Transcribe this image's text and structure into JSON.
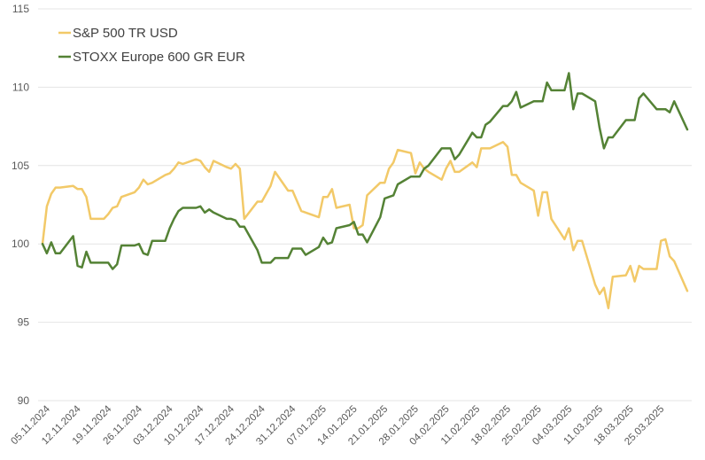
{
  "chart_data": {
    "type": "line",
    "title": "",
    "xlabel": "",
    "ylabel": "",
    "ylim": [
      90,
      115
    ],
    "y_ticks": [
      90,
      95,
      100,
      105,
      110,
      115
    ],
    "grid": "horizontal",
    "legend_position": "top-left",
    "x_tick_labels": [
      "05.11.2024",
      "12.11.2024",
      "19.11.2024",
      "26.11.2024",
      "03.12.2024",
      "10.12.2024",
      "17.12.2024",
      "24.12.2024",
      "31.12.2024",
      "07.01.2025",
      "14.01.2025",
      "21.01.2025",
      "28.01.2025",
      "04.02.2025",
      "11.02.2025",
      "18.02.2025",
      "25.02.2025",
      "04.03.2025",
      "11.03.2025",
      "18.03.2025",
      "25.03.2025"
    ],
    "series": [
      {
        "name": "S&P 500 TR USD",
        "color": "#f2c968",
        "points": [
          [
            "2024-11-04",
            100.0
          ],
          [
            "2024-11-05",
            102.4
          ],
          [
            "2024-11-06",
            103.2
          ],
          [
            "2024-11-07",
            103.6
          ],
          [
            "2024-11-08",
            103.6
          ],
          [
            "2024-11-11",
            103.7
          ],
          [
            "2024-11-12",
            103.5
          ],
          [
            "2024-11-13",
            103.5
          ],
          [
            "2024-11-14",
            103.0
          ],
          [
            "2024-11-15",
            101.6
          ],
          [
            "2024-11-18",
            101.6
          ],
          [
            "2024-11-19",
            101.9
          ],
          [
            "2024-11-20",
            102.3
          ],
          [
            "2024-11-21",
            102.4
          ],
          [
            "2024-11-22",
            103.0
          ],
          [
            "2024-11-25",
            103.3
          ],
          [
            "2024-11-26",
            103.6
          ],
          [
            "2024-11-27",
            104.1
          ],
          [
            "2024-11-28",
            103.8
          ],
          [
            "2024-11-29",
            103.9
          ],
          [
            "2024-12-02",
            104.4
          ],
          [
            "2024-12-03",
            104.5
          ],
          [
            "2024-12-04",
            104.8
          ],
          [
            "2024-12-05",
            105.2
          ],
          [
            "2024-12-06",
            105.1
          ],
          [
            "2024-12-09",
            105.4
          ],
          [
            "2024-12-10",
            105.3
          ],
          [
            "2024-12-11",
            104.9
          ],
          [
            "2024-12-12",
            104.6
          ],
          [
            "2024-12-13",
            105.3
          ],
          [
            "2024-12-16",
            104.9
          ],
          [
            "2024-12-17",
            104.8
          ],
          [
            "2024-12-18",
            105.1
          ],
          [
            "2024-12-19",
            104.8
          ],
          [
            "2024-12-20",
            101.6
          ],
          [
            "2024-12-23",
            102.7
          ],
          [
            "2024-12-24",
            102.7
          ],
          [
            "2024-12-26",
            103.7
          ],
          [
            "2024-12-27",
            104.6
          ],
          [
            "2024-12-30",
            103.4
          ],
          [
            "2024-12-31",
            103.4
          ],
          [
            "2025-01-02",
            102.1
          ],
          [
            "2025-01-03",
            102.0
          ],
          [
            "2025-01-06",
            101.7
          ],
          [
            "2025-01-07",
            103.0
          ],
          [
            "2025-01-08",
            103.0
          ],
          [
            "2025-01-09",
            103.5
          ],
          [
            "2025-01-10",
            102.3
          ],
          [
            "2025-01-13",
            102.5
          ],
          [
            "2025-01-14",
            101.0
          ],
          [
            "2025-01-15",
            101.0
          ],
          [
            "2025-01-16",
            101.2
          ],
          [
            "2025-01-17",
            103.1
          ],
          [
            "2025-01-20",
            103.9
          ],
          [
            "2025-01-21",
            103.9
          ],
          [
            "2025-01-22",
            104.8
          ],
          [
            "2025-01-23",
            105.2
          ],
          [
            "2025-01-24",
            106.0
          ],
          [
            "2025-01-27",
            105.8
          ],
          [
            "2025-01-28",
            104.5
          ],
          [
            "2025-01-29",
            105.2
          ],
          [
            "2025-01-30",
            104.8
          ],
          [
            "2025-01-31",
            104.6
          ],
          [
            "2025-02-03",
            104.1
          ],
          [
            "2025-02-04",
            104.8
          ],
          [
            "2025-02-05",
            105.3
          ],
          [
            "2025-02-06",
            104.6
          ],
          [
            "2025-02-07",
            104.6
          ],
          [
            "2025-02-10",
            105.2
          ],
          [
            "2025-02-11",
            104.9
          ],
          [
            "2025-02-12",
            106.1
          ],
          [
            "2025-02-13",
            106.1
          ],
          [
            "2025-02-14",
            106.1
          ],
          [
            "2025-02-17",
            106.5
          ],
          [
            "2025-02-18",
            106.2
          ],
          [
            "2025-02-19",
            104.4
          ],
          [
            "2025-02-20",
            104.4
          ],
          [
            "2025-02-21",
            103.9
          ],
          [
            "2025-02-24",
            103.4
          ],
          [
            "2025-02-25",
            101.8
          ],
          [
            "2025-02-26",
            103.3
          ],
          [
            "2025-02-27",
            103.3
          ],
          [
            "2025-02-28",
            101.6
          ],
          [
            "2025-03-03",
            100.3
          ],
          [
            "2025-03-04",
            101.0
          ],
          [
            "2025-03-05",
            99.6
          ],
          [
            "2025-03-06",
            100.2
          ],
          [
            "2025-03-07",
            100.2
          ],
          [
            "2025-03-10",
            97.4
          ],
          [
            "2025-03-11",
            96.8
          ],
          [
            "2025-03-12",
            97.2
          ],
          [
            "2025-03-13",
            95.9
          ],
          [
            "2025-03-14",
            97.9
          ],
          [
            "2025-03-17",
            98.0
          ],
          [
            "2025-03-18",
            98.6
          ],
          [
            "2025-03-19",
            97.6
          ],
          [
            "2025-03-20",
            98.6
          ],
          [
            "2025-03-21",
            98.4
          ],
          [
            "2025-03-24",
            98.4
          ],
          [
            "2025-03-25",
            100.2
          ],
          [
            "2025-03-26",
            100.3
          ],
          [
            "2025-03-27",
            99.2
          ],
          [
            "2025-03-28",
            98.9
          ],
          [
            "2025-03-31",
            97.0
          ]
        ]
      },
      {
        "name": "STOXX Europe 600 GR EUR",
        "color": "#548235",
        "points": [
          [
            "2024-11-04",
            100.0
          ],
          [
            "2024-11-05",
            99.4
          ],
          [
            "2024-11-06",
            100.1
          ],
          [
            "2024-11-07",
            99.4
          ],
          [
            "2024-11-08",
            99.4
          ],
          [
            "2024-11-11",
            100.5
          ],
          [
            "2024-11-12",
            98.6
          ],
          [
            "2024-11-13",
            98.5
          ],
          [
            "2024-11-14",
            99.5
          ],
          [
            "2024-11-15",
            98.8
          ],
          [
            "2024-11-18",
            98.8
          ],
          [
            "2024-11-19",
            98.8
          ],
          [
            "2024-11-20",
            98.4
          ],
          [
            "2024-11-21",
            98.7
          ],
          [
            "2024-11-22",
            99.9
          ],
          [
            "2024-11-25",
            99.9
          ],
          [
            "2024-11-26",
            100.0
          ],
          [
            "2024-11-27",
            99.4
          ],
          [
            "2024-11-28",
            99.3
          ],
          [
            "2024-11-29",
            100.2
          ],
          [
            "2024-12-02",
            100.2
          ],
          [
            "2024-12-03",
            101.0
          ],
          [
            "2024-12-04",
            101.6
          ],
          [
            "2024-12-05",
            102.1
          ],
          [
            "2024-12-06",
            102.3
          ],
          [
            "2024-12-09",
            102.3
          ],
          [
            "2024-12-10",
            102.4
          ],
          [
            "2024-12-11",
            102.0
          ],
          [
            "2024-12-12",
            102.2
          ],
          [
            "2024-12-13",
            102.0
          ],
          [
            "2024-12-16",
            101.6
          ],
          [
            "2024-12-17",
            101.6
          ],
          [
            "2024-12-18",
            101.5
          ],
          [
            "2024-12-19",
            101.1
          ],
          [
            "2024-12-20",
            101.1
          ],
          [
            "2024-12-23",
            99.6
          ],
          [
            "2024-12-24",
            98.8
          ],
          [
            "2024-12-26",
            98.8
          ],
          [
            "2024-12-27",
            99.1
          ],
          [
            "2024-12-30",
            99.1
          ],
          [
            "2024-12-31",
            99.7
          ],
          [
            "2025-01-02",
            99.7
          ],
          [
            "2025-01-03",
            99.3
          ],
          [
            "2025-01-06",
            99.8
          ],
          [
            "2025-01-07",
            100.4
          ],
          [
            "2025-01-08",
            100.0
          ],
          [
            "2025-01-09",
            100.1
          ],
          [
            "2025-01-10",
            101.0
          ],
          [
            "2025-01-13",
            101.2
          ],
          [
            "2025-01-14",
            101.4
          ],
          [
            "2025-01-15",
            100.6
          ],
          [
            "2025-01-16",
            100.6
          ],
          [
            "2025-01-17",
            100.1
          ],
          [
            "2025-01-20",
            101.7
          ],
          [
            "2025-01-21",
            102.9
          ],
          [
            "2025-01-22",
            103.0
          ],
          [
            "2025-01-23",
            103.1
          ],
          [
            "2025-01-24",
            103.8
          ],
          [
            "2025-01-27",
            104.3
          ],
          [
            "2025-01-28",
            104.3
          ],
          [
            "2025-01-29",
            104.3
          ],
          [
            "2025-01-30",
            104.8
          ],
          [
            "2025-01-31",
            105.0
          ],
          [
            "2025-02-03",
            106.1
          ],
          [
            "2025-02-04",
            106.1
          ],
          [
            "2025-02-05",
            106.1
          ],
          [
            "2025-02-06",
            105.4
          ],
          [
            "2025-02-07",
            105.7
          ],
          [
            "2025-02-10",
            107.1
          ],
          [
            "2025-02-11",
            106.8
          ],
          [
            "2025-02-12",
            106.8
          ],
          [
            "2025-02-13",
            107.6
          ],
          [
            "2025-02-14",
            107.8
          ],
          [
            "2025-02-17",
            108.8
          ],
          [
            "2025-02-18",
            108.8
          ],
          [
            "2025-02-19",
            109.1
          ],
          [
            "2025-02-20",
            109.7
          ],
          [
            "2025-02-21",
            108.7
          ],
          [
            "2025-02-24",
            109.1
          ],
          [
            "2025-02-25",
            109.1
          ],
          [
            "2025-02-26",
            109.1
          ],
          [
            "2025-02-27",
            110.3
          ],
          [
            "2025-02-28",
            109.8
          ],
          [
            "2025-03-03",
            109.8
          ],
          [
            "2025-03-04",
            110.9
          ],
          [
            "2025-03-05",
            108.6
          ],
          [
            "2025-03-06",
            109.6
          ],
          [
            "2025-03-07",
            109.6
          ],
          [
            "2025-03-10",
            109.1
          ],
          [
            "2025-03-11",
            107.4
          ],
          [
            "2025-03-12",
            106.1
          ],
          [
            "2025-03-13",
            106.8
          ],
          [
            "2025-03-14",
            106.8
          ],
          [
            "2025-03-17",
            107.9
          ],
          [
            "2025-03-18",
            107.9
          ],
          [
            "2025-03-19",
            107.9
          ],
          [
            "2025-03-20",
            109.3
          ],
          [
            "2025-03-21",
            109.6
          ],
          [
            "2025-03-24",
            108.6
          ],
          [
            "2025-03-25",
            108.6
          ],
          [
            "2025-03-26",
            108.6
          ],
          [
            "2025-03-27",
            108.4
          ],
          [
            "2025-03-28",
            109.1
          ],
          [
            "2025-03-31",
            107.3
          ]
        ]
      }
    ]
  }
}
